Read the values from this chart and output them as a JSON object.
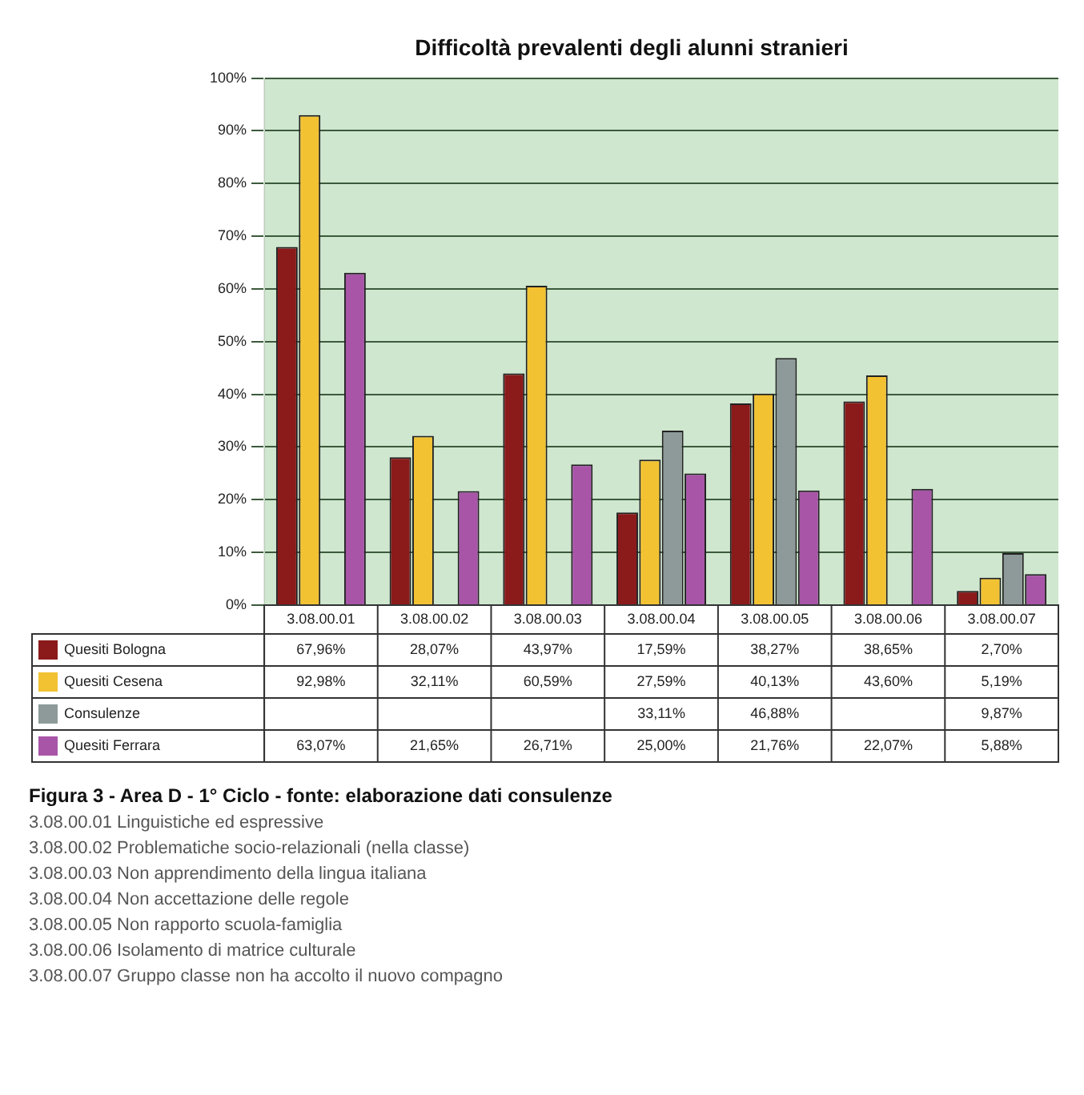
{
  "chart_data": {
    "type": "bar",
    "title": "Difficoltà prevalenti degli alunni stranieri",
    "categories": [
      "3.08.00.01",
      "3.08.00.02",
      "3.08.00.03",
      "3.08.00.04",
      "3.08.00.05",
      "3.08.00.06",
      "3.08.00.07"
    ],
    "series": [
      {
        "name": "Quesiti Bologna",
        "color": "#8b1a1a",
        "values": [
          67.96,
          28.07,
          43.97,
          17.59,
          38.27,
          38.65,
          2.7
        ],
        "value_labels": [
          "67,96%",
          "28,07%",
          "43,97%",
          "17,59%",
          "38,27%",
          "38,65%",
          "2,70%"
        ]
      },
      {
        "name": "Quesiti Cesena",
        "color": "#f2c232",
        "values": [
          92.98,
          32.11,
          60.59,
          27.59,
          40.13,
          43.6,
          5.19
        ],
        "value_labels": [
          "92,98%",
          "32,11%",
          "60,59%",
          "27,59%",
          "40,13%",
          "43,60%",
          "5,19%"
        ]
      },
      {
        "name": "Consulenze",
        "color": "#8e9a9a",
        "values": [
          null,
          null,
          null,
          33.11,
          46.88,
          null,
          9.87
        ],
        "value_labels": [
          null,
          null,
          null,
          "33,11%",
          "46,88%",
          null,
          "9,87%"
        ]
      },
      {
        "name": "Quesiti Ferrara",
        "color": "#a855a8",
        "values": [
          63.07,
          21.65,
          26.71,
          25.0,
          21.76,
          22.07,
          5.88
        ],
        "value_labels": [
          "63,07%",
          "21,65%",
          "26,71%",
          "25,00%",
          "21,76%",
          "22,07%",
          "5,88%"
        ]
      }
    ],
    "ylim": [
      0,
      100
    ],
    "yticks": [
      {
        "value": 0,
        "label": "0%"
      },
      {
        "value": 10,
        "label": "10%"
      },
      {
        "value": 20,
        "label": "20%"
      },
      {
        "value": 30,
        "label": "30%"
      },
      {
        "value": 40,
        "label": "40%"
      },
      {
        "value": 50,
        "label": "50%"
      },
      {
        "value": 60,
        "label": "60%"
      },
      {
        "value": 70,
        "label": "70%"
      },
      {
        "value": 80,
        "label": "80%"
      },
      {
        "value": 90,
        "label": "90%"
      },
      {
        "value": 100,
        "label": "100%"
      }
    ],
    "grid": "y",
    "legend": "bottom",
    "annotations": [
      "Figura 3 - Area D - 1° Ciclo - fonte: elaborazione dati consulenze",
      "3.08.00.01 Linguistiche ed espressive",
      "3.08.00.02 Problematiche socio-relazionali (nella classe)",
      "3.08.00.03 Non apprendimento della lingua italiana",
      "3.08.00.04 Non accettazione delle regole",
      "3.08.00.05 Non rapporto scuola-famiglia",
      "3.08.00.06 Isolamento di matrice culturale",
      "3.08.00.07 Gruppo classe non ha accolto il nuovo compagno"
    ]
  }
}
